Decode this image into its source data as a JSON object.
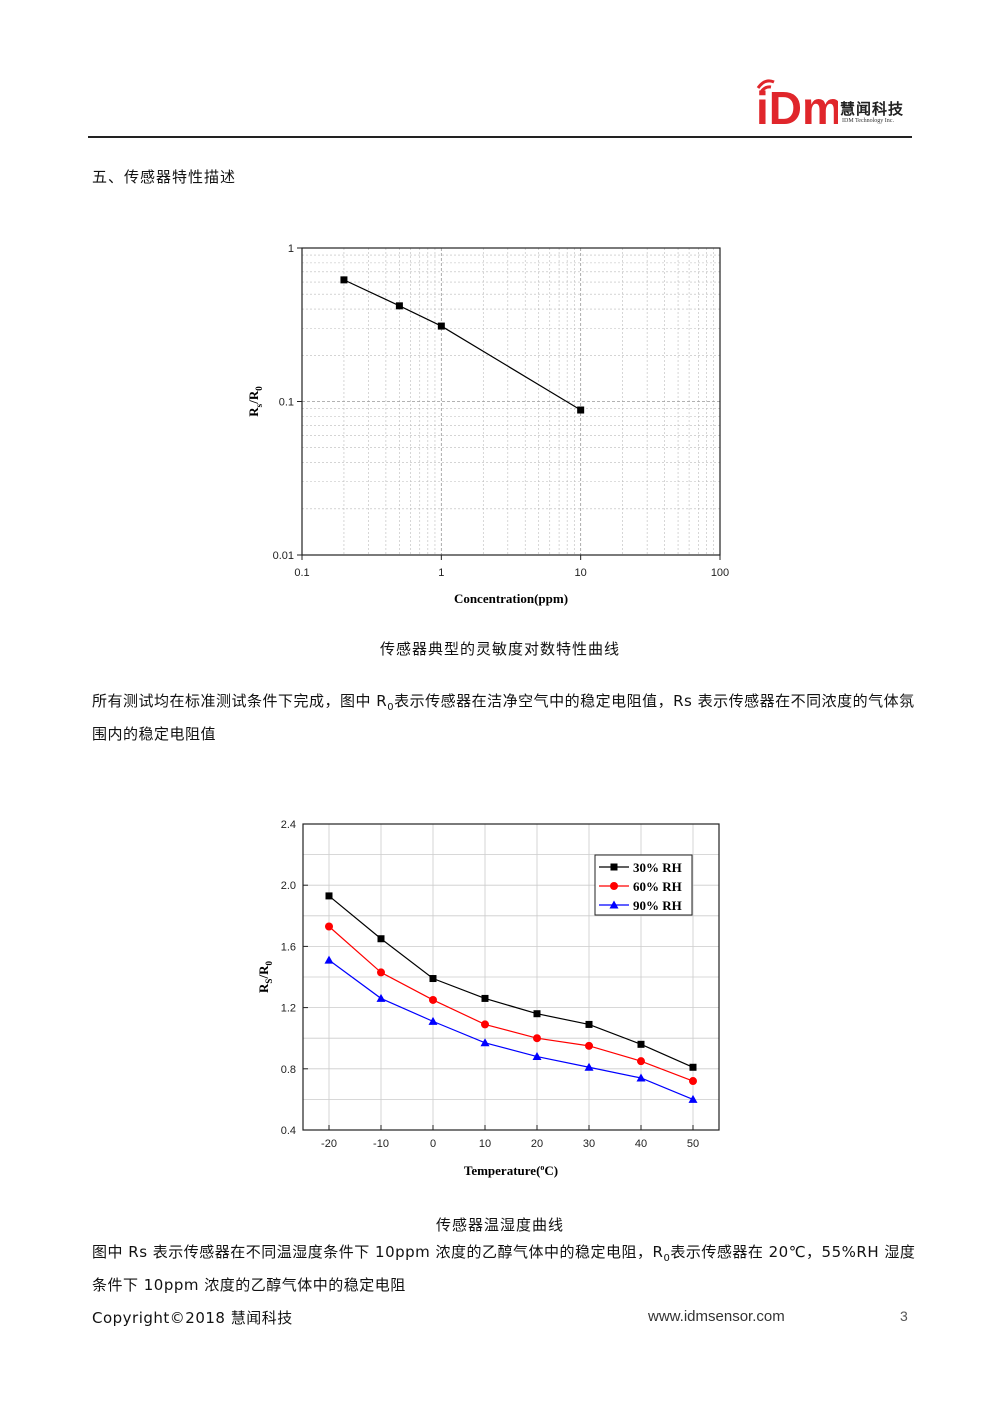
{
  "header": {
    "logo_mark": "iDm",
    "company_cn": "慧闻科技",
    "company_en": "IDM Technology Inc."
  },
  "section_heading": "五、传感器特性描述",
  "chart1_caption": "传感器典型的灵敏度对数特性曲线",
  "paragraph1": {
    "part1": "所有测试均在标准测试条件下完成，图中 R",
    "sub": "0",
    "part2": "表示传感器在洁净空气中的稳定电阻值，Rs 表示传感器在不同浓度的气体氛围内的稳定电阻值"
  },
  "chart2_caption": "传感器温湿度曲线",
  "paragraph2": {
    "part1": "图中 Rs 表示传感器在不同温湿度条件下 10ppm 浓度的乙醇气体中的稳定电阻，R",
    "sub": "0",
    "part2": "表示传感器在 20℃，55%RH 湿度条件下 10ppm 浓度的乙醇气体中的稳定电阻"
  },
  "footer": {
    "copyright": "Copyright©2018 慧闻科技",
    "website": "www.idmsensor.com",
    "page_number": "3"
  },
  "colors": {
    "logo_red": "#e0262b",
    "series_black": "#000000",
    "series_red": "#ff0000",
    "series_blue": "#0000ff"
  },
  "chart_data": [
    {
      "type": "line",
      "xscale": "log",
      "yscale": "log",
      "xlim": [
        0.1,
        100
      ],
      "ylim": [
        0.01,
        1
      ],
      "xticks": [
        "0.1",
        "1",
        "10",
        "100"
      ],
      "yticks": [
        "0.01",
        "0.1",
        "1"
      ],
      "xlabel": "Concentration(ppm)",
      "ylabel_main": "R",
      "ylabel_sub1": "s",
      "ylabel_mid": "/R",
      "ylabel_sub2": "0",
      "grid": true,
      "legend": "none",
      "x": [
        0.2,
        0.5,
        1,
        10
      ],
      "y": [
        0.62,
        0.42,
        0.31,
        0.088
      ]
    },
    {
      "type": "line",
      "xlim": [
        -25,
        55
      ],
      "ylim": [
        0.4,
        2.4
      ],
      "xticks": [
        "-20",
        "-10",
        "0",
        "10",
        "20",
        "30",
        "40",
        "50"
      ],
      "yticks": [
        "0.4",
        "0.8",
        "1.2",
        "1.6",
        "2.0",
        "2.4"
      ],
      "xlabel_main": "Temperature(",
      "xlabel_sup": "o",
      "xlabel_end": "C)",
      "ylabel_main": "R",
      "ylabel_sub1": "S",
      "ylabel_mid": "/R",
      "ylabel_sub2": "0",
      "grid": true,
      "legend": "top-right",
      "x": [
        -20,
        -10,
        0,
        10,
        20,
        30,
        40,
        50
      ],
      "series": [
        {
          "name": "30% RH",
          "color": "#000000",
          "marker": "square",
          "values": [
            1.93,
            1.65,
            1.39,
            1.26,
            1.16,
            1.09,
            0.96,
            0.81
          ]
        },
        {
          "name": "60% RH",
          "color": "#ff0000",
          "marker": "circle",
          "values": [
            1.73,
            1.43,
            1.25,
            1.09,
            1.0,
            0.95,
            0.85,
            0.72
          ]
        },
        {
          "name": "90% RH",
          "color": "#0000ff",
          "marker": "triangle",
          "values": [
            1.51,
            1.26,
            1.11,
            0.97,
            0.88,
            0.81,
            0.74,
            0.6
          ]
        }
      ]
    }
  ]
}
